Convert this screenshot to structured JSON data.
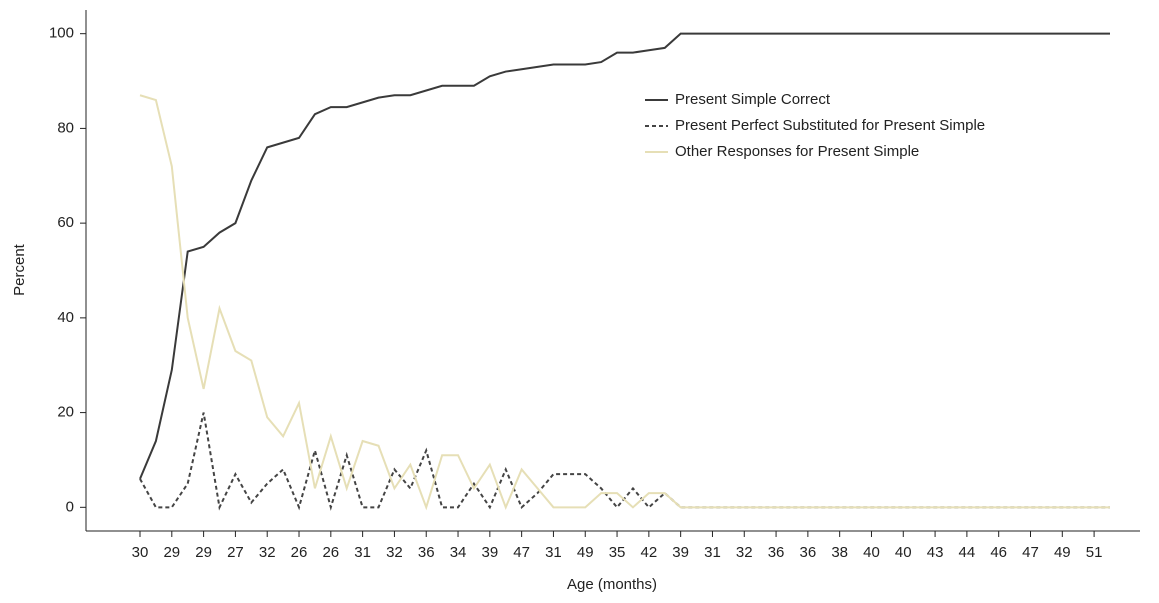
{
  "chart_data": {
    "type": "line",
    "x_label": "Age (months)",
    "y_label": "Percent",
    "categories": [
      "30",
      null,
      "29",
      null,
      "29",
      null,
      "27",
      null,
      "32",
      null,
      "26",
      null,
      "26",
      null,
      "31",
      null,
      "32",
      null,
      "36",
      null,
      "34",
      null,
      "39",
      null,
      "47",
      null,
      "31",
      null,
      "49",
      null,
      "35",
      null,
      "42",
      null,
      "39",
      null,
      "31",
      null,
      "32",
      null,
      "36",
      null,
      "36",
      null,
      "38",
      null,
      "40",
      null,
      "40",
      null,
      "43",
      null,
      "44",
      null,
      "46",
      null,
      "47",
      null,
      "49",
      null,
      "51",
      null
    ],
    "series": [
      {
        "name": "Present Simple Correct",
        "color": "#3a3a3a",
        "dash": false,
        "values": [
          6,
          14,
          29,
          54,
          55,
          58,
          60,
          69,
          76,
          77,
          78,
          83,
          84.5,
          84.5,
          85.5,
          86.5,
          87,
          87,
          88,
          89,
          89,
          89,
          91,
          92,
          92.5,
          93,
          93.5,
          93.5,
          93.5,
          94,
          96,
          96,
          96.5,
          97,
          100,
          100,
          100,
          100,
          100,
          100,
          100,
          100,
          100,
          100,
          100,
          100,
          100,
          100,
          100,
          100,
          100,
          100,
          100,
          100,
          100,
          100,
          100,
          100,
          100,
          100,
          100,
          100
        ]
      },
      {
        "name": "Present Perfect Substituted for Present Simple",
        "color": "#444444",
        "dash": true,
        "values": [
          6,
          0,
          0,
          5,
          20,
          0,
          7,
          1,
          5,
          8,
          0,
          12,
          0,
          11,
          0,
          0,
          8,
          4,
          12,
          0,
          0,
          5,
          0,
          8,
          0,
          3,
          7,
          7,
          7,
          4,
          0,
          4,
          0,
          3,
          0,
          0,
          0,
          0,
          0,
          0,
          0,
          0,
          0,
          0,
          0,
          0,
          0,
          0,
          0,
          0,
          0,
          0,
          0,
          0,
          0,
          0,
          0,
          0,
          0,
          0,
          0,
          0
        ]
      },
      {
        "name": "Other Responses for Present Simple",
        "color": "#e6dfb6",
        "dash": false,
        "values": [
          87,
          86,
          72,
          40,
          25,
          42,
          33,
          31,
          19,
          15,
          22,
          4,
          15,
          4,
          14,
          13,
          4,
          9,
          0,
          11,
          11,
          4,
          9,
          0,
          8,
          4,
          0,
          0,
          0,
          3,
          3,
          0,
          3,
          3,
          0,
          0,
          0,
          0,
          0,
          0,
          0,
          0,
          0,
          0,
          0,
          0,
          0,
          0,
          0,
          0,
          0,
          0,
          0,
          0,
          0,
          0,
          0,
          0,
          0,
          0,
          0,
          0
        ]
      }
    ],
    "ylim": [
      -5,
      105
    ],
    "yticks": [
      0,
      20,
      40,
      60,
      80,
      100
    ]
  }
}
